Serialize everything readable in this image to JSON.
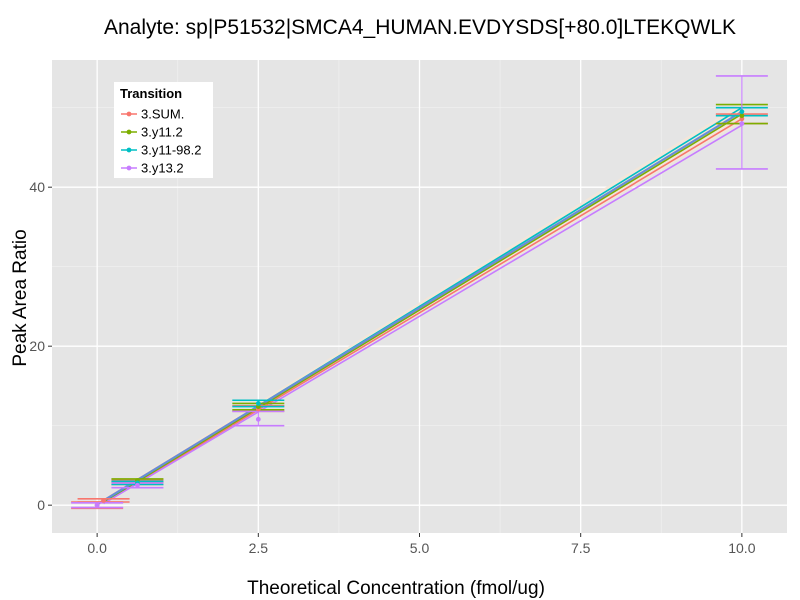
{
  "chart_data": {
    "type": "line",
    "title": "Analyte: sp|P51532|SMCA4_HUMAN.EVDYSDS[+80.0]LTEKQWLK",
    "xlabel": "Theoretical Concentration (fmol/ug)",
    "ylabel": "Peak Area Ratio",
    "xlim": [
      -0.7,
      10.7
    ],
    "ylim": [
      -3.5,
      56
    ],
    "x_ticks": [
      0,
      2.5,
      5,
      7.5,
      10
    ],
    "x_tick_labels": [
      "0.0",
      "2.5",
      "5.0",
      "7.5",
      "10.0"
    ],
    "y_ticks": [
      0,
      20,
      40
    ],
    "y_tick_labels": [
      "0",
      "20",
      "40"
    ],
    "grid": true,
    "legend": {
      "title": "Transition",
      "position": "top-left"
    },
    "series": [
      {
        "name": "3.SUM.",
        "color": "#F8766D",
        "points": [
          {
            "x": 0,
            "y": 0.0,
            "lo": -0.4,
            "hi": 0.4
          },
          {
            "x": 0.1,
            "y": 0.6,
            "lo": 0.4,
            "hi": 0.8
          },
          {
            "x": 0.625,
            "y": 2.9,
            "lo": 2.6,
            "hi": 3.2
          },
          {
            "x": 2.5,
            "y": 12.1,
            "lo": 11.8,
            "hi": 12.5
          },
          {
            "x": 10,
            "y": 48.6,
            "lo": 48.0,
            "hi": 49.2
          }
        ],
        "fit": [
          [
            0.1,
            0.3
          ],
          [
            10,
            48.6
          ]
        ]
      },
      {
        "name": "3.y11.2",
        "color": "#7CAE00",
        "points": [
          {
            "x": 0.625,
            "y": 3.1,
            "lo": 2.9,
            "hi": 3.3
          },
          {
            "x": 2.5,
            "y": 12.4,
            "lo": 12.0,
            "hi": 12.8
          },
          {
            "x": 10,
            "y": 49.0,
            "lo": 48.0,
            "hi": 50.4
          }
        ],
        "fit": [
          [
            0.1,
            0.4
          ],
          [
            10,
            49.2
          ]
        ]
      },
      {
        "name": "3.y11-98.2",
        "color": "#00BFC4",
        "points": [
          {
            "x": 0.625,
            "y": 2.8,
            "lo": 2.6,
            "hi": 3.0
          },
          {
            "x": 2.5,
            "y": 12.8,
            "lo": 12.4,
            "hi": 13.2
          },
          {
            "x": 10,
            "y": 49.5,
            "lo": 49.0,
            "hi": 50.0
          }
        ],
        "fit": [
          [
            0.1,
            0.5
          ],
          [
            10,
            50.0
          ]
        ]
      },
      {
        "name": "3.y13.2",
        "color": "#C77CFF",
        "points": [
          {
            "x": 0,
            "y": 0.0,
            "lo": -0.3,
            "hi": 0.3
          },
          {
            "x": 0.625,
            "y": 2.5,
            "lo": 2.2,
            "hi": 2.8
          },
          {
            "x": 2.5,
            "y": 10.8,
            "lo": 10.0,
            "hi": 11.8
          },
          {
            "x": 10,
            "y": 48.0,
            "lo": 42.3,
            "hi": 54.0
          }
        ],
        "fit": [
          [
            0.1,
            0.2
          ],
          [
            10,
            47.8
          ]
        ]
      }
    ],
    "overall_fit": {
      "color": "#6B8CD6",
      "line": [
        [
          0,
          0.1
        ],
        [
          10,
          49.5
        ]
      ],
      "band": [
        [
          0,
          -0.2,
          0.4
        ],
        [
          10,
          48.2,
          50.6
        ]
      ],
      "band_color": "#F3E6D8"
    }
  }
}
